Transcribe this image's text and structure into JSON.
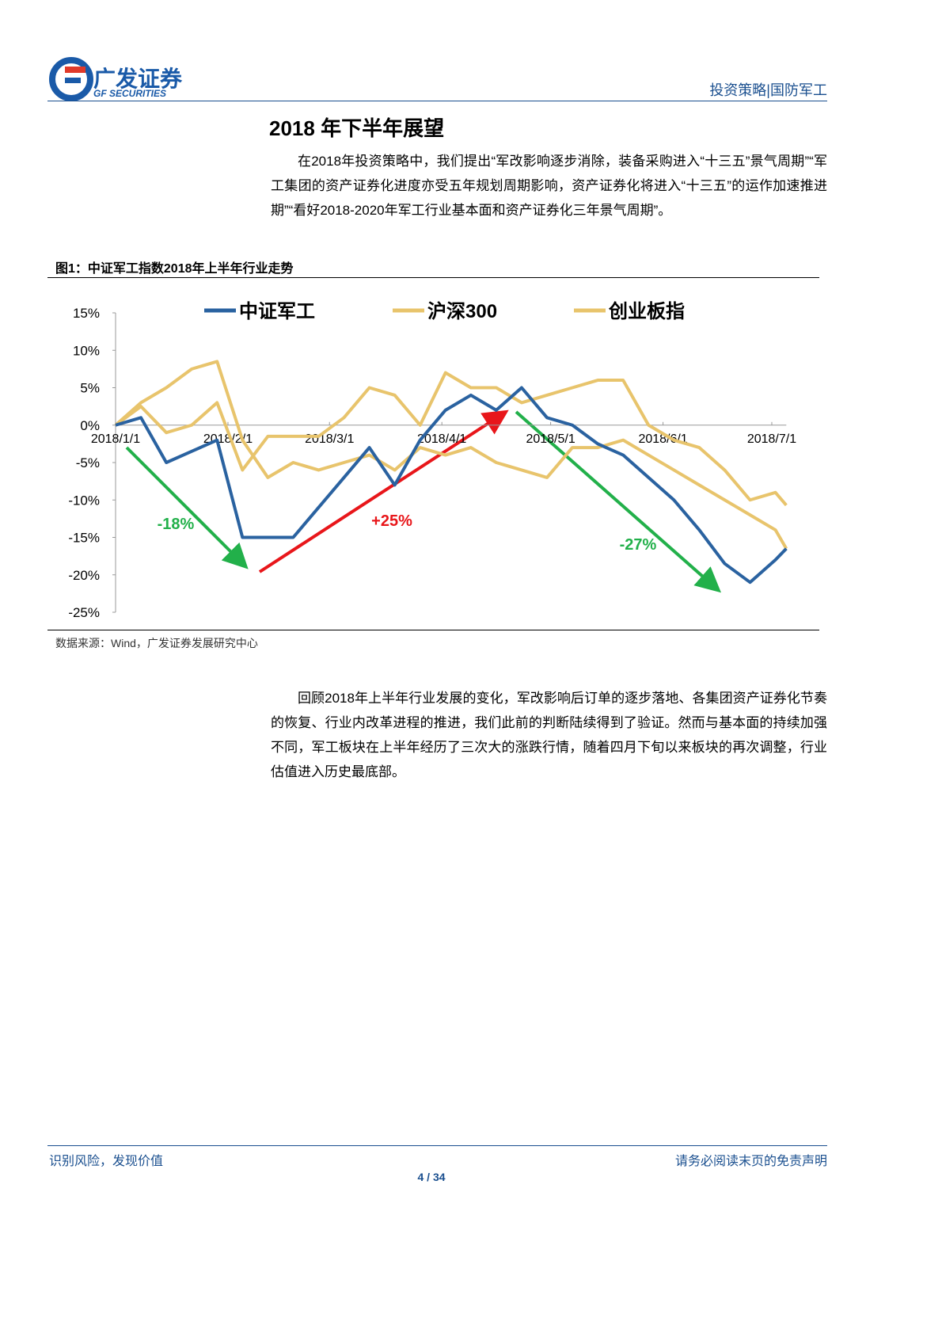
{
  "header": {
    "logo_cn": "广发证券",
    "logo_en": "GF SECURITIES",
    "section": "投资策略|国防军工"
  },
  "title": "2018 年下半年展望",
  "paragraph1": "在2018年投资策略中，我们提出“军改影响逐步消除，装备采购进入“十三五”景气周期”“军工集团的资产证券化进度亦受五年规划周期影响，资产证券化将进入“十三五”的运作加速推进期”“看好2018-2020年军工行业基本面和资产证券化三年景气周期”。",
  "figure_caption": "图1：中证军工指数2018年上半年行业走势",
  "chart_data": {
    "type": "line",
    "x": [
      "2018/1/1",
      "2018/1/8",
      "2018/1/15",
      "2018/1/22",
      "2018/1/29",
      "2018/2/5",
      "2018/2/12",
      "2018/2/19",
      "2018/2/26",
      "2018/3/5",
      "2018/3/12",
      "2018/3/19",
      "2018/3/26",
      "2018/4/2",
      "2018/4/9",
      "2018/4/16",
      "2018/4/23",
      "2018/4/30",
      "2018/5/7",
      "2018/5/14",
      "2018/5/21",
      "2018/5/28",
      "2018/6/4",
      "2018/6/11",
      "2018/6/18",
      "2018/6/25",
      "2018/7/2",
      "2018/7/5"
    ],
    "series": [
      {
        "name": "中证军工",
        "color": "#2a62a0",
        "values": [
          0,
          1,
          -5,
          -3.5,
          -2,
          -15,
          -15,
          -15,
          -11,
          -7,
          -3,
          -8,
          -2,
          2,
          4,
          2,
          5,
          1,
          0,
          -2.5,
          -4,
          -7,
          -10,
          -14,
          -18.5,
          -21,
          -18,
          -16.5
        ]
      },
      {
        "name": "沪深300",
        "color": "#e8c46c",
        "values": [
          0,
          3,
          5,
          7.5,
          8.5,
          -2,
          -7,
          -5,
          -6,
          -5,
          -4,
          -6,
          -3,
          -4,
          -3,
          -5,
          -6,
          -7,
          -3,
          -3,
          -2,
          -4,
          -6,
          -8,
          -10,
          -12,
          -14,
          -16.5
        ]
      },
      {
        "name": "创业板指",
        "color": "#e8c46c",
        "values": [
          0,
          2.5,
          -1,
          0,
          3,
          -6,
          -1.5,
          -1.5,
          -1.5,
          1,
          5,
          4,
          0,
          7,
          5,
          5,
          3,
          4,
          5,
          6,
          6,
          0,
          -2,
          -3,
          -6,
          -10,
          -9,
          -10.7
        ]
      }
    ],
    "xticks": [
      "2018/1/1",
      "2018/2/1",
      "2018/3/1",
      "2018/4/1",
      "2018/5/1",
      "2018/6/1",
      "2018/7/1"
    ],
    "ylim": [
      -25,
      15
    ],
    "yticks": [
      {
        "value": 15,
        "label": "15%"
      },
      {
        "value": 10,
        "label": "10%"
      },
      {
        "value": 5,
        "label": "5%"
      },
      {
        "value": 0,
        "label": "0%"
      },
      {
        "value": -5,
        "label": "-5%"
      },
      {
        "value": -10,
        "label": "-10%"
      },
      {
        "value": -15,
        "label": "-15%"
      },
      {
        "value": -20,
        "label": "-20%"
      },
      {
        "value": -25,
        "label": "-25%"
      }
    ],
    "annotations": [
      "-18%",
      "+25%",
      "-27%"
    ]
  },
  "source": "数据来源：Wind，广发证券发展研究中心",
  "paragraph2": "回顾2018年上半年行业发展的变化，军改影响后订单的逐步落地、各集团资产证券化节奏的恢复、行业内改革进程的推进，我们此前的判断陆续得到了验证。然而与基本面的持续加强不同，军工板块在上半年经历了三次大的涨跌行情，随着四月下旬以来板块的再次调整，行业估值进入历史最底部。",
  "footer": {
    "left": "识别风险，发现价值",
    "right": "请务必阅读末页的免责声明",
    "page": "4 / 34"
  }
}
